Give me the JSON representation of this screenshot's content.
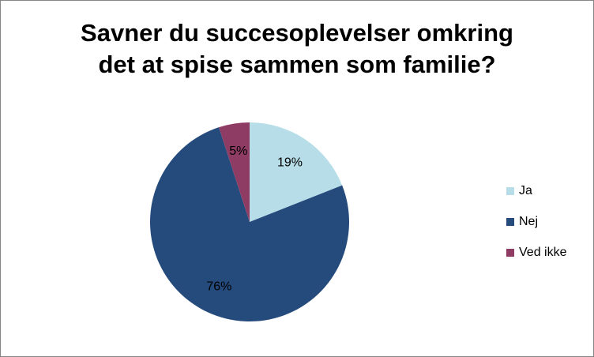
{
  "chart_data": {
    "type": "pie",
    "title_lines": [
      "Savner du succesoplevelser omkring",
      "det at spise sammen som familie?"
    ],
    "categories": [
      "Ja",
      "Nej",
      "Ved ikke"
    ],
    "values": [
      19,
      76,
      5
    ],
    "value_labels": [
      "19%",
      "76%",
      "5%"
    ],
    "colors": [
      "#b7dee8",
      "#254a7c",
      "#8e3c64"
    ],
    "legend_position": "right",
    "start_angle": "12 o'clock",
    "direction": "clockwise"
  }
}
